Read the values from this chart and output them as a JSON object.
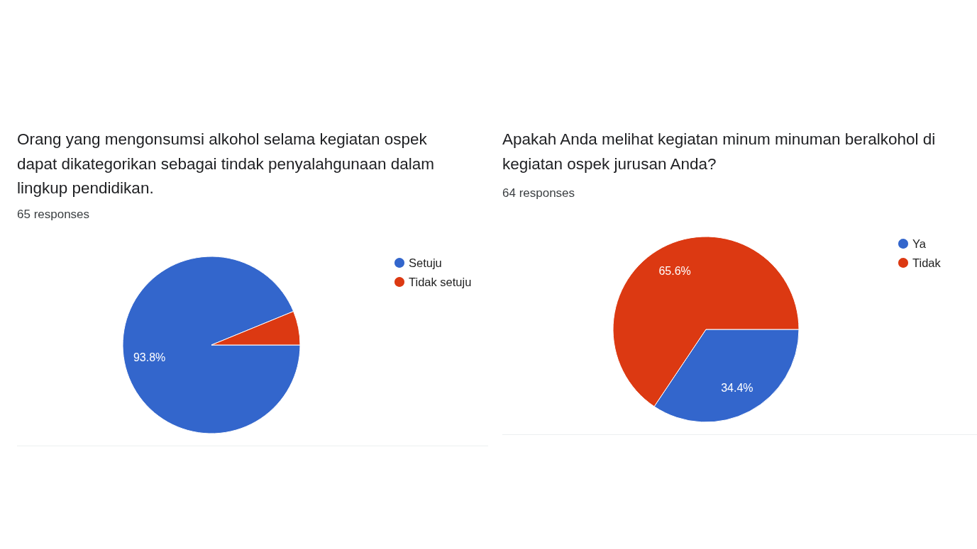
{
  "chart_data": [
    {
      "type": "pie",
      "title": "Orang yang mengonsumsi alkohol selama kegiatan ospek dapat dikategorikan sebagai tindak penyalahgunaan dalam lingkup pendidikan.",
      "subtitle": "65 responses",
      "categories": [
        "Setuju",
        "Tidak setuju"
      ],
      "values": [
        93.8,
        6.2
      ],
      "colors": [
        "#3366cc",
        "#dc3912"
      ],
      "value_labels": [
        "93.8%",
        null
      ],
      "legend": "top right"
    },
    {
      "type": "pie",
      "title": "Apakah Anda melihat kegiatan minum minuman beralkohol di kegiatan ospek jurusan Anda?",
      "subtitle": "64 responses",
      "categories": [
        "Ya",
        "Tidak"
      ],
      "values": [
        34.4,
        65.6
      ],
      "colors": [
        "#3366cc",
        "#dc3912"
      ],
      "value_labels": [
        "34.4%",
        "65.6%"
      ],
      "legend": "top right"
    }
  ]
}
